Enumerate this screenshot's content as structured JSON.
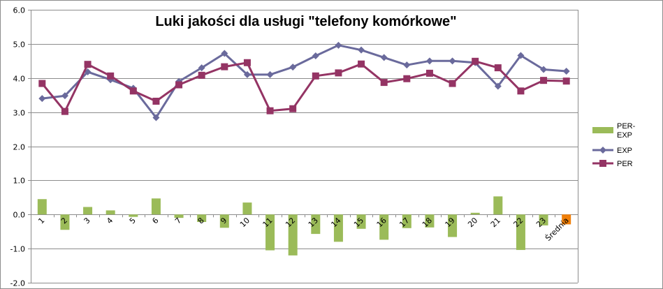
{
  "chart_data": {
    "type": "bar+line",
    "title": "Luki jakości dla usługi \"telefony komórkowe\"",
    "categories": [
      "1",
      "2",
      "3",
      "4",
      "5",
      "6",
      "7",
      "8",
      "9",
      "10",
      "11",
      "12",
      "13",
      "14",
      "15",
      "16",
      "17",
      "18",
      "19",
      "20",
      "21",
      "22",
      "23",
      "Średnia"
    ],
    "ylim": [
      -2.0,
      6.0
    ],
    "yticks": [
      "6.0",
      "5.0",
      "4.0",
      "3.0",
      "2.0",
      "1.0",
      "0.0",
      "-1.0",
      "-2.0"
    ],
    "grid": true,
    "legend_position": "right",
    "series": [
      {
        "name": "PER-EXP",
        "kind": "bar",
        "color": "#9bbb59",
        "highlight_color": "#f07f09",
        "values": [
          0.45,
          -0.45,
          0.22,
          0.12,
          -0.07,
          0.47,
          -0.1,
          -0.22,
          -0.39,
          0.35,
          -1.05,
          -1.2,
          -0.57,
          -0.8,
          -0.42,
          -0.74,
          -0.4,
          -0.38,
          -0.66,
          0.05,
          0.53,
          -1.04,
          -0.32,
          -0.29
        ]
      },
      {
        "name": "EXP",
        "kind": "line",
        "color": "#6a6a9c",
        "marker": "diamond",
        "values": [
          3.4,
          3.48,
          4.18,
          3.95,
          3.7,
          2.84,
          3.9,
          4.3,
          4.72,
          4.1,
          4.1,
          4.32,
          4.65,
          4.96,
          4.82,
          4.6,
          4.38,
          4.5,
          4.5,
          4.45,
          3.76,
          4.66,
          4.25,
          4.2
        ]
      },
      {
        "name": "PER",
        "kind": "line",
        "color": "#943464",
        "marker": "square",
        "values": [
          3.84,
          3.02,
          4.4,
          4.06,
          3.62,
          3.32,
          3.8,
          4.08,
          4.33,
          4.45,
          3.04,
          3.1,
          4.06,
          4.15,
          4.41,
          3.87,
          3.98,
          4.14,
          3.84,
          4.49,
          4.3,
          3.62,
          3.93,
          3.91
        ]
      }
    ],
    "legend": [
      {
        "label_line1": "PER-",
        "label_line2": "EXP",
        "series": "PER-EXP"
      },
      {
        "label_line1": "EXP",
        "label_line2": "",
        "series": "EXP"
      },
      {
        "label_line1": "PER",
        "label_line2": "",
        "series": "PER"
      }
    ]
  }
}
